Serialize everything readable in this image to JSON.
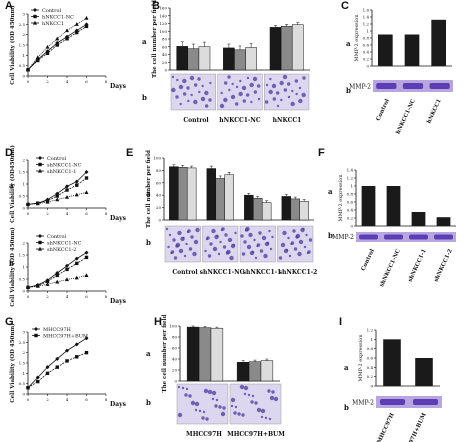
{
  "panel_letters": [
    "A",
    "B",
    "C",
    "D",
    "E",
    "F",
    "G",
    "H",
    "I"
  ],
  "row_letters": {
    "a": "a",
    "b": "b"
  },
  "labels": {
    "A": {
      "ylabel": "Cell Viability (OD 450nm)",
      "xlabel": "Days",
      "legend": [
        "Control",
        "hNKCC1-NC",
        "hNKCC1"
      ]
    },
    "B": {
      "ylabel": "The cell number per field",
      "groups": [
        "Control",
        "hNKCC1-NC",
        "hNKCC1"
      ]
    },
    "C": {
      "ylabel": "MMP-2 expression",
      "blot_label": "MMP-2",
      "groups": [
        "Control",
        "hNKCC1-NC",
        "hNKCC1"
      ]
    },
    "D": {
      "ylabel_top": "Cell Viability (OD450nm)",
      "ylabel_bottom": "Cell Viability (OD 450nm)",
      "xlabel": "Days",
      "legend_top": [
        "Control",
        "shNKCC1-NC",
        "shNKCC1-1"
      ],
      "legend_bottom": [
        "Control",
        "shNKCC1-NC",
        "shNKCC1-2"
      ]
    },
    "E": {
      "ylabel": "The cell number per field",
      "groups": [
        "Control",
        "shNKCC1-NC",
        "shNKCC1-1",
        "shNKCC1-2"
      ]
    },
    "F": {
      "ylabel": "MMP-2 expression",
      "blot_label": "MMP-2",
      "groups": [
        "Control",
        "shNKCC1-NC",
        "shNKCC1-1",
        "shNKCC1-2"
      ]
    },
    "G": {
      "ylabel": "Cell Viability (OD 450nm)",
      "xlabel": "Days",
      "legend": [
        "MHCC97H",
        "MHCC97H+BUM"
      ]
    },
    "H": {
      "ylabel": "The cell number per field",
      "groups": [
        "MHCC97H",
        "MHCC97H+BUM"
      ]
    },
    "I": {
      "ylabel": "MMP-2 expression",
      "blot_label": "MMP-2",
      "groups": [
        "MHCC97H",
        "MHCC97H+BUM"
      ]
    }
  },
  "chart_data": [
    {
      "panel": "A",
      "type": "line",
      "x": [
        0,
        1,
        2,
        3,
        4,
        5,
        6
      ],
      "xlim": [
        0,
        8
      ],
      "xticks": [
        0,
        2,
        4,
        6,
        8
      ],
      "ylim": [
        0,
        3
      ],
      "yticks": [
        0,
        0.5,
        1,
        1.5,
        2,
        2.5,
        3
      ],
      "series": [
        {
          "name": "Control",
          "values": [
            0.3,
            0.8,
            1.2,
            1.6,
            1.9,
            2.2,
            2.5
          ]
        },
        {
          "name": "hNKCC1-NC",
          "values": [
            0.3,
            0.75,
            1.1,
            1.5,
            1.8,
            2.1,
            2.4
          ]
        },
        {
          "name": "hNKCC1",
          "values": [
            0.3,
            0.9,
            1.4,
            1.8,
            2.2,
            2.5,
            2.8
          ]
        }
      ]
    },
    {
      "panel": "B",
      "type": "bar",
      "ylim": [
        0,
        160
      ],
      "yticks": [
        0,
        20,
        40,
        60,
        80,
        100,
        120,
        140,
        160
      ],
      "categories": [
        "Control",
        "hNKCC1-NC",
        "hNKCC1"
      ],
      "series_values": [
        [
          61,
          55,
          60
        ],
        [
          57,
          52,
          58
        ],
        [
          110,
          113,
          117
        ]
      ],
      "errors": [
        [
          12,
          12,
          12
        ],
        [
          10,
          10,
          10
        ],
        [
          5,
          5,
          5
        ]
      ],
      "colors": [
        "#1a1a1a",
        "#8a8a8a",
        "#dcdcdc"
      ]
    },
    {
      "panel": "C",
      "type": "bar",
      "ylim": [
        0,
        1.6
      ],
      "yticks": [
        0,
        0.2,
        0.4,
        0.6,
        0.8,
        1,
        1.2,
        1.4,
        1.6
      ],
      "categories": [
        "Control",
        "hNKCC1-NC",
        "hNKCC1"
      ],
      "values": [
        0.9,
        0.9,
        1.32
      ],
      "colors": [
        "#1a1a1a"
      ]
    },
    {
      "panel": "D-a",
      "type": "line",
      "x": [
        0,
        1,
        2,
        3,
        4,
        5,
        6
      ],
      "xlim": [
        0,
        8
      ],
      "xticks": [
        0,
        2,
        4,
        6,
        8
      ],
      "ylim": [
        0,
        2
      ],
      "yticks": [
        0,
        0.5,
        1,
        1.5,
        2
      ],
      "series": [
        {
          "name": "Control",
          "values": [
            0.15,
            0.2,
            0.35,
            0.6,
            0.9,
            1.1,
            1.5
          ]
        },
        {
          "name": "shNKCC1-NC",
          "values": [
            0.15,
            0.2,
            0.3,
            0.5,
            0.75,
            0.95,
            1.25
          ]
        },
        {
          "name": "shNKCC1-1",
          "values": [
            0.15,
            0.18,
            0.25,
            0.35,
            0.45,
            0.55,
            0.65
          ]
        }
      ]
    },
    {
      "panel": "D-b",
      "type": "line",
      "x": [
        0,
        1,
        2,
        3,
        4,
        5,
        6
      ],
      "xlim": [
        0,
        8
      ],
      "xticks": [
        0,
        2,
        4,
        6,
        8
      ],
      "ylim": [
        0,
        2
      ],
      "yticks": [
        0,
        0.5,
        1,
        1.5,
        2
      ],
      "series": [
        {
          "name": "Control",
          "values": [
            0.15,
            0.25,
            0.45,
            0.75,
            1.05,
            1.35,
            1.6
          ]
        },
        {
          "name": "shNKCC1-NC",
          "values": [
            0.15,
            0.22,
            0.4,
            0.65,
            0.9,
            1.15,
            1.4
          ]
        },
        {
          "name": "shNKCC1-2",
          "values": [
            0.15,
            0.2,
            0.28,
            0.38,
            0.48,
            0.55,
            0.65
          ]
        }
      ]
    },
    {
      "panel": "E",
      "type": "bar",
      "ylim": [
        0,
        100
      ],
      "yticks": [
        0,
        20,
        40,
        60,
        80,
        100
      ],
      "categories": [
        "Control",
        "shNKCC1-NC",
        "shNKCC1-1",
        "shNKCC1-2"
      ],
      "series_values": [
        [
          86,
          85,
          84
        ],
        [
          83,
          67,
          73
        ],
        [
          40,
          35,
          28
        ],
        [
          38,
          34,
          30
        ]
      ],
      "errors": [
        [
          3,
          3,
          3
        ],
        [
          4,
          4,
          4
        ],
        [
          3,
          3,
          3
        ],
        [
          3,
          3,
          3
        ]
      ],
      "colors": [
        "#1a1a1a",
        "#8a8a8a",
        "#dcdcdc"
      ]
    },
    {
      "panel": "F",
      "type": "bar",
      "ylim": [
        0,
        1.4
      ],
      "yticks": [
        0,
        0.2,
        0.4,
        0.6,
        0.8,
        1,
        1.2,
        1.4
      ],
      "categories": [
        "Control",
        "shNKCC1-NC",
        "shNKCC1-1",
        "shNKCC1-2"
      ],
      "values": [
        1,
        1,
        0.35,
        0.22
      ],
      "colors": [
        "#1a1a1a"
      ]
    },
    {
      "panel": "G",
      "type": "line",
      "x": [
        0,
        1,
        2,
        3,
        4,
        5,
        6
      ],
      "xlim": [
        0,
        8
      ],
      "xticks": [
        0,
        2,
        4,
        6,
        8
      ],
      "ylim": [
        0,
        3
      ],
      "yticks": [
        0,
        0.5,
        1,
        1.5,
        2,
        2.5,
        3
      ],
      "series": [
        {
          "name": "MHCC97H",
          "values": [
            0.3,
            0.8,
            1.3,
            1.7,
            2.1,
            2.4,
            2.7
          ]
        },
        {
          "name": "MHCC97H+BUM",
          "values": [
            0.3,
            0.6,
            1.0,
            1.3,
            1.6,
            1.8,
            2.0
          ]
        }
      ]
    },
    {
      "panel": "H",
      "type": "bar",
      "ylim": [
        0,
        100
      ],
      "yticks": [
        0,
        20,
        40,
        60,
        80,
        100
      ],
      "categories": [
        "MHCC97H",
        "MHCC97H+BUM"
      ],
      "series_values": [
        [
          98,
          97,
          96
        ],
        [
          34,
          35,
          37
        ]
      ],
      "errors": [
        [
          2,
          2,
          2
        ],
        [
          3,
          3,
          3
        ]
      ],
      "colors": [
        "#1a1a1a",
        "#8a8a8a",
        "#dcdcdc"
      ]
    },
    {
      "panel": "I",
      "type": "bar",
      "ylim": [
        0,
        1.2
      ],
      "yticks": [
        0,
        0.2,
        0.4,
        0.6,
        0.8,
        1,
        1.2
      ],
      "categories": [
        "MHCC97H",
        "MHCC97H+BUM"
      ],
      "values": [
        1,
        0.6
      ],
      "colors": [
        "#1a1a1a"
      ]
    }
  ]
}
